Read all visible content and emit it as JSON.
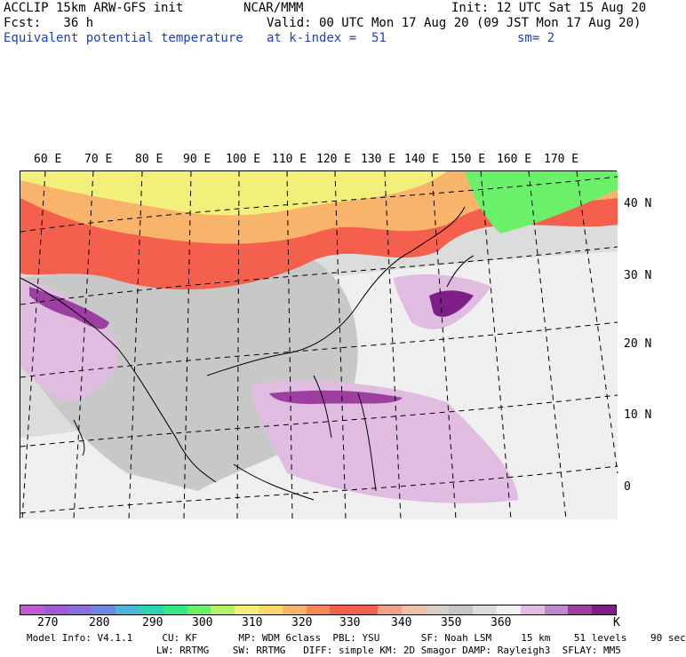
{
  "header": {
    "line1_left": "ACCLIP 15km ARW-GFS init",
    "line1_center": "NCAR/MMM",
    "line1_right": "Init: 12 UTC Sat 15 Aug 20",
    "line2_left": "Fcst:   36 h",
    "line2_right": "Valid: 00 UTC Mon 17 Aug 20 (09 JST Mon 17 Aug 20)",
    "line3_left": "Equivalent potential temperature",
    "line3_center": "at k-index =  51",
    "line3_right": "sm= 2"
  },
  "map": {
    "lon_labels": [
      "60 E",
      "70 E",
      "80 E",
      "90 E",
      "100 E",
      "110 E",
      "120 E",
      "130 E",
      "140 E",
      "150 E",
      "160 E",
      "170 E"
    ],
    "lat_labels": [
      "40 N",
      "30 N",
      "20 N",
      "10 N",
      "0"
    ]
  },
  "colorbar": {
    "colors": [
      "#c25bd1",
      "#a35ad6",
      "#8a6fe0",
      "#6e88e8",
      "#4cb8d6",
      "#2fd3b0",
      "#34e88a",
      "#6bf06a",
      "#b5f26a",
      "#f2f07a",
      "#f6d96a",
      "#f7b46a",
      "#f7885a",
      "#f4604d",
      "#f2604f",
      "#f3a08a",
      "#efbfa6",
      "#d8d0c8",
      "#c6c6c6",
      "#dcdcdc",
      "#f2f2f2",
      "#e0bde0",
      "#c088cc",
      "#9d3fa0",
      "#7d1f86"
    ],
    "labels": [
      "270",
      "280",
      "290",
      "300",
      "310",
      "320",
      "330",
      "340",
      "350",
      "360"
    ],
    "unit": "K"
  },
  "footer": {
    "line1": "Model Info: V4.1.1     CU: KF       MP: WDM 6class  PBL: YSU       SF: Noah LSM     15 km    51 levels    90 sec",
    "line2": "                      LW: RRTMG    SW: RRTMG   DIFF: simple KM: 2D Smagor DAMP: Rayleigh3  SFLAY: MM5"
  }
}
